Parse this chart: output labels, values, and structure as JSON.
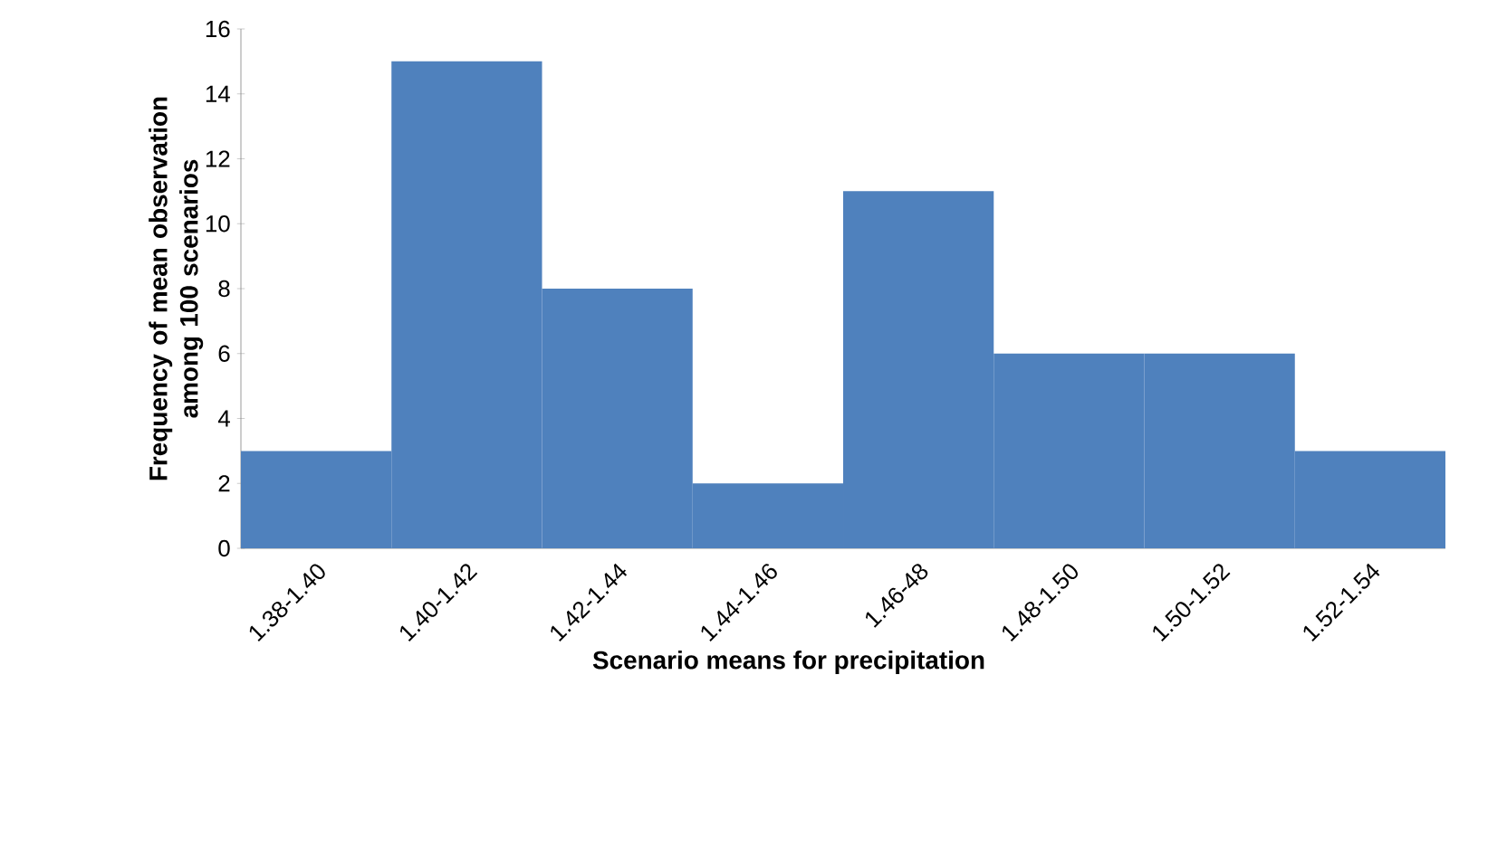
{
  "chart_data": {
    "type": "bar",
    "categories": [
      "1.38-1.40",
      "1.40-1.42",
      "1.42-1.44",
      "1.44-1.46",
      "1.46-48",
      "1.48-1.50",
      "1.50-1.52",
      "1.52-1.54"
    ],
    "values": [
      3,
      15,
      8,
      2,
      11,
      6,
      6,
      3
    ],
    "color": "#4f81bd",
    "ylim": [
      0,
      16
    ],
    "yticks": [
      0,
      2,
      4,
      6,
      8,
      10,
      12,
      14,
      16
    ],
    "xlabel": "Scenario means for precipitation",
    "ylabel": "Frequency of mean observation among 100 scenarios"
  }
}
